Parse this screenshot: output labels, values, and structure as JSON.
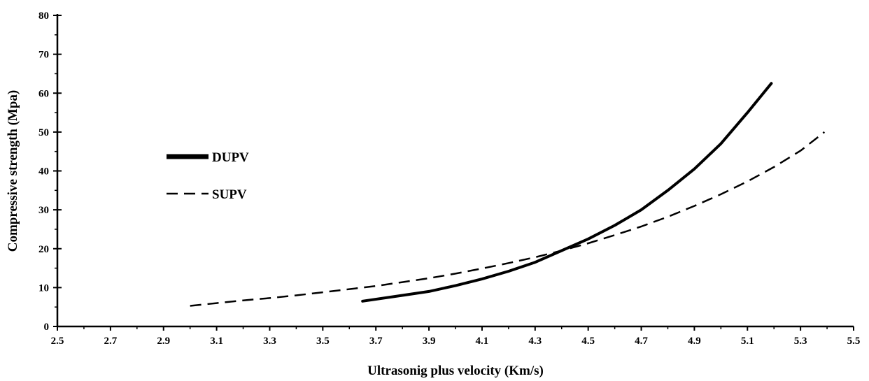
{
  "chart_data": {
    "type": "line",
    "title": "",
    "xlabel": "Ultrasonig plus velocity (Km/s)",
    "ylabel": "Compressive strength (Mpa)",
    "xlim": [
      2.5,
      5.5
    ],
    "ylim": [
      0,
      80
    ],
    "x_ticks": [
      "2.5",
      "2.7",
      "2.9",
      "3.1",
      "3.3",
      "3.5",
      "3.7",
      "3.9",
      "4.1",
      "4.3",
      "4.5",
      "4.7",
      "4.9",
      "5.1",
      "5.3",
      "5.5"
    ],
    "y_ticks": [
      "0",
      "10",
      "20",
      "30",
      "40",
      "50",
      "60",
      "70",
      "80"
    ],
    "grid": false,
    "legend_position": "center-left",
    "series": [
      {
        "name": "DUPV",
        "style": "solid",
        "color": "#000000",
        "points": [
          [
            3.65,
            6.5
          ],
          [
            3.8,
            8.0
          ],
          [
            3.9,
            9.0
          ],
          [
            4.0,
            10.5
          ],
          [
            4.1,
            12.2
          ],
          [
            4.2,
            14.2
          ],
          [
            4.3,
            16.5
          ],
          [
            4.4,
            19.5
          ],
          [
            4.5,
            22.5
          ],
          [
            4.6,
            26.0
          ],
          [
            4.7,
            30.0
          ],
          [
            4.8,
            35.0
          ],
          [
            4.9,
            40.5
          ],
          [
            5.0,
            47.0
          ],
          [
            5.1,
            55.0
          ],
          [
            5.19,
            62.5
          ]
        ]
      },
      {
        "name": "SUPV",
        "style": "dashed",
        "color": "#000000",
        "points": [
          [
            3.0,
            5.3
          ],
          [
            3.1,
            6.0
          ],
          [
            3.2,
            6.7
          ],
          [
            3.3,
            7.3
          ],
          [
            3.4,
            8.0
          ],
          [
            3.5,
            8.8
          ],
          [
            3.6,
            9.6
          ],
          [
            3.7,
            10.4
          ],
          [
            3.8,
            11.4
          ],
          [
            3.9,
            12.4
          ],
          [
            4.0,
            13.6
          ],
          [
            4.1,
            14.9
          ],
          [
            4.2,
            16.3
          ],
          [
            4.3,
            17.8
          ],
          [
            4.4,
            19.5
          ],
          [
            4.5,
            21.4
          ],
          [
            4.6,
            23.5
          ],
          [
            4.7,
            25.7
          ],
          [
            4.8,
            28.2
          ],
          [
            4.9,
            31.0
          ],
          [
            5.0,
            34.0
          ],
          [
            5.1,
            37.3
          ],
          [
            5.2,
            41.0
          ],
          [
            5.3,
            45.2
          ],
          [
            5.39,
            50.0
          ]
        ]
      }
    ]
  }
}
